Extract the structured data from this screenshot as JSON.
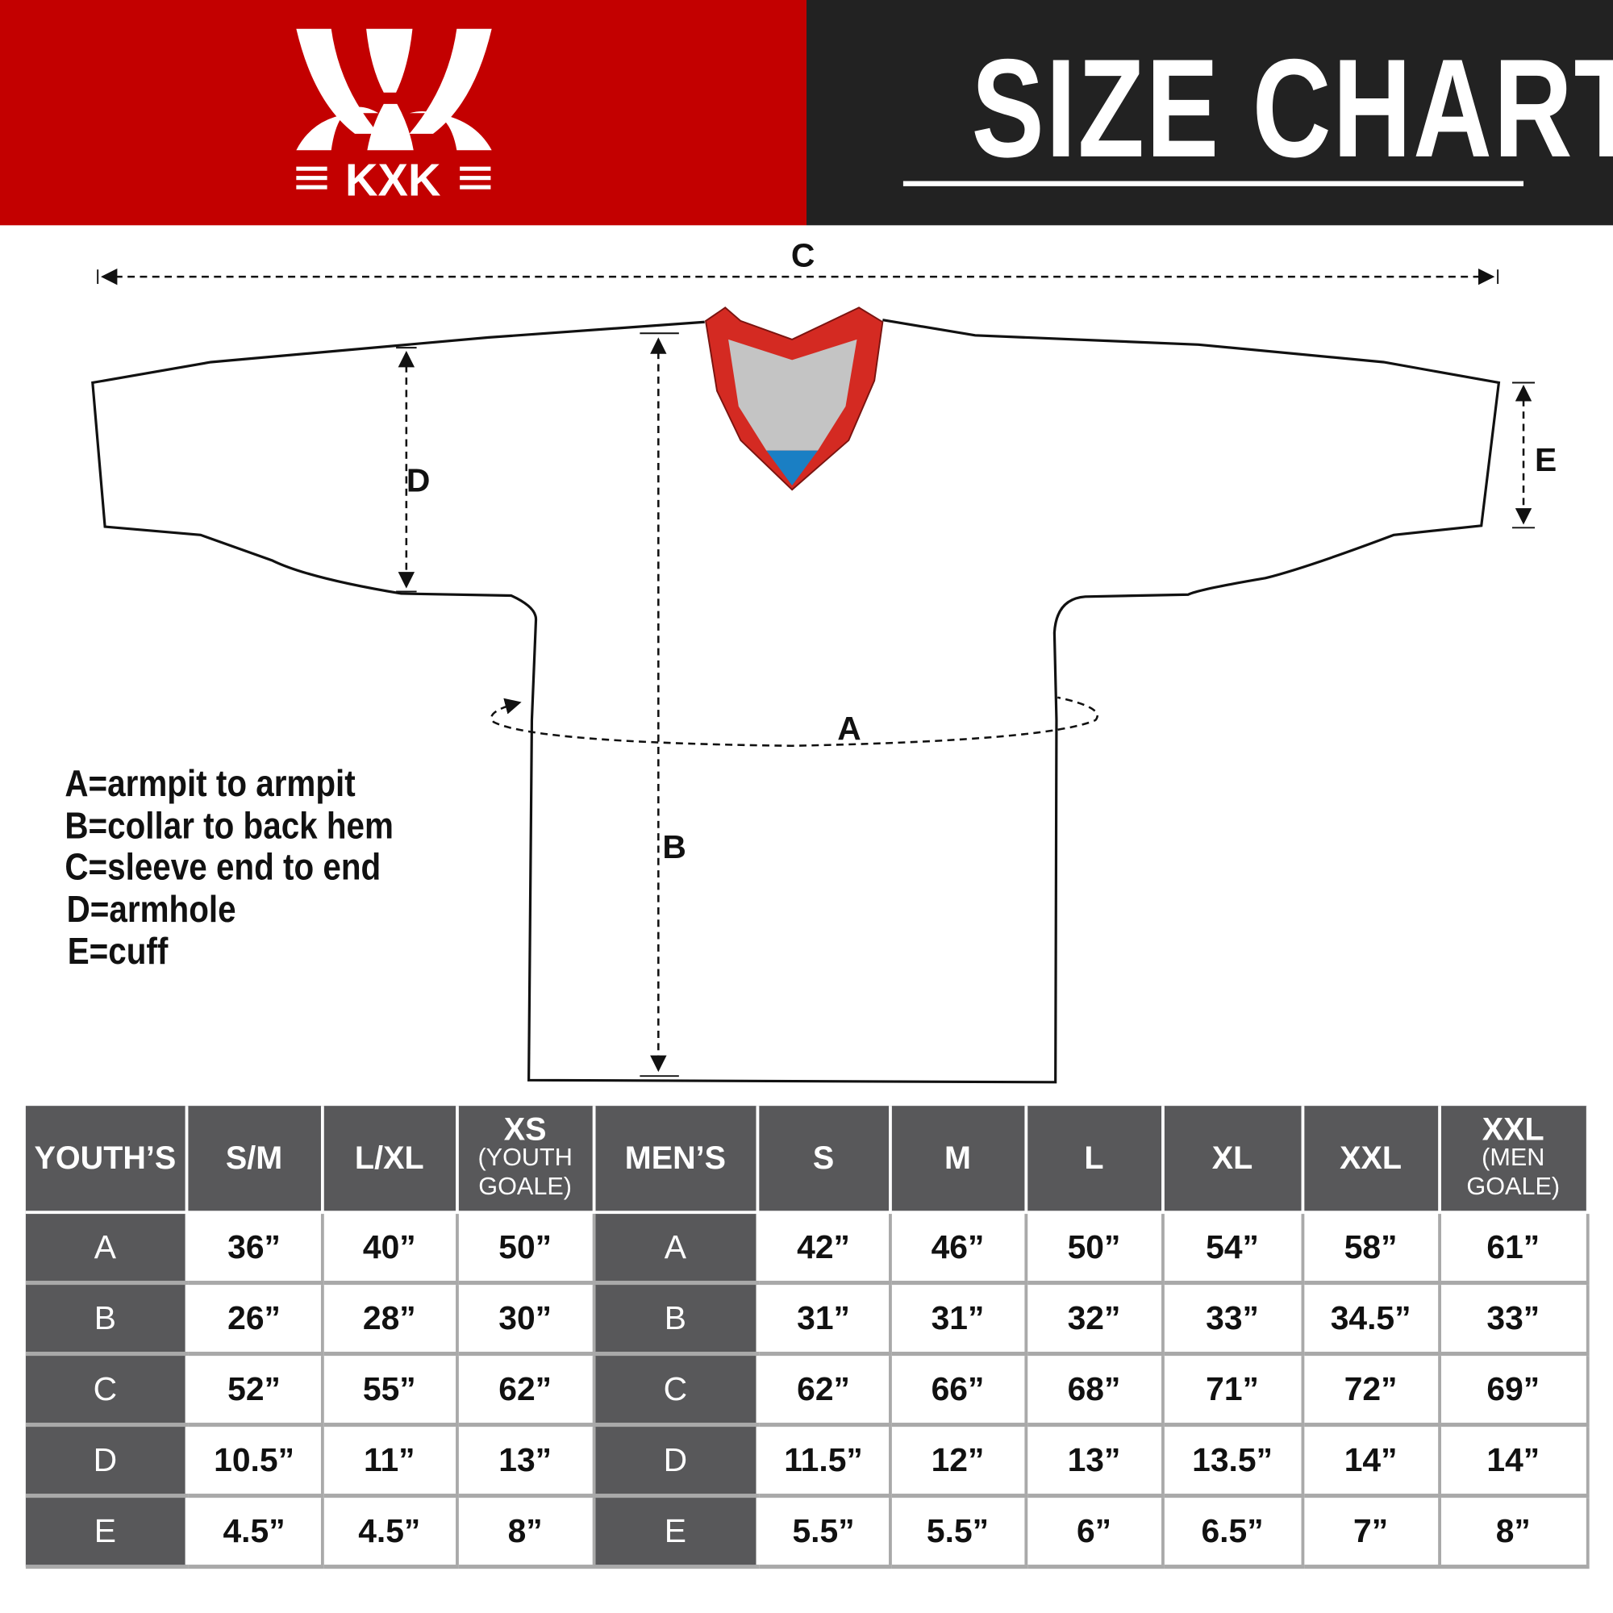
{
  "brand": {
    "logo_text": "KXK",
    "color_red": "#c30000",
    "color_dark": "#222222"
  },
  "header": {
    "title": "SIZE CHART"
  },
  "diagram": {
    "labels": {
      "a": "A",
      "b": "B",
      "c": "C",
      "d": "D",
      "e": "E"
    },
    "legend": [
      "A=armpit to armpit",
      "B=collar to back hem",
      "C=sleeve end to end",
      "D=armhole",
      "E=cuff"
    ],
    "collar_colors": {
      "trim": "#d42a22",
      "inner": "#c4c4c4",
      "tag": "#1a7fc4"
    }
  },
  "table": {
    "youth_header": "YOUTH’S",
    "men_header": "MEN’S",
    "youth_sizes": [
      {
        "main": "S/M",
        "sub": ""
      },
      {
        "main": "L/XL",
        "sub": ""
      },
      {
        "main": "XS",
        "sub": "(YOUTH GOALE)"
      }
    ],
    "men_sizes": [
      {
        "main": "S",
        "sub": ""
      },
      {
        "main": "M",
        "sub": ""
      },
      {
        "main": "L",
        "sub": ""
      },
      {
        "main": "XL",
        "sub": ""
      },
      {
        "main": "XXL",
        "sub": ""
      },
      {
        "main": "XXL",
        "sub": "(MEN GOALE)"
      }
    ],
    "rows": [
      {
        "label": "A",
        "youth": [
          "36”",
          "40”",
          "50”"
        ],
        "men": [
          "42”",
          "46”",
          "50”",
          "54”",
          "58”",
          "61”"
        ]
      },
      {
        "label": "B",
        "youth": [
          "26”",
          "28”",
          "30”"
        ],
        "men": [
          "31”",
          "31”",
          "32”",
          "33”",
          "34.5”",
          "33”"
        ]
      },
      {
        "label": "C",
        "youth": [
          "52”",
          "55”",
          "62”"
        ],
        "men": [
          "62”",
          "66”",
          "68”",
          "71”",
          "72”",
          "69”"
        ]
      },
      {
        "label": "D",
        "youth": [
          "10.5”",
          "11”",
          "13”"
        ],
        "men": [
          "11.5”",
          "12”",
          "13”",
          "13.5”",
          "14”",
          "14”"
        ]
      },
      {
        "label": "E",
        "youth": [
          "4.5”",
          "4.5”",
          "8”"
        ],
        "men": [
          "5.5”",
          "5.5”",
          "6”",
          "6.5”",
          "7”",
          "8”"
        ]
      }
    ]
  }
}
